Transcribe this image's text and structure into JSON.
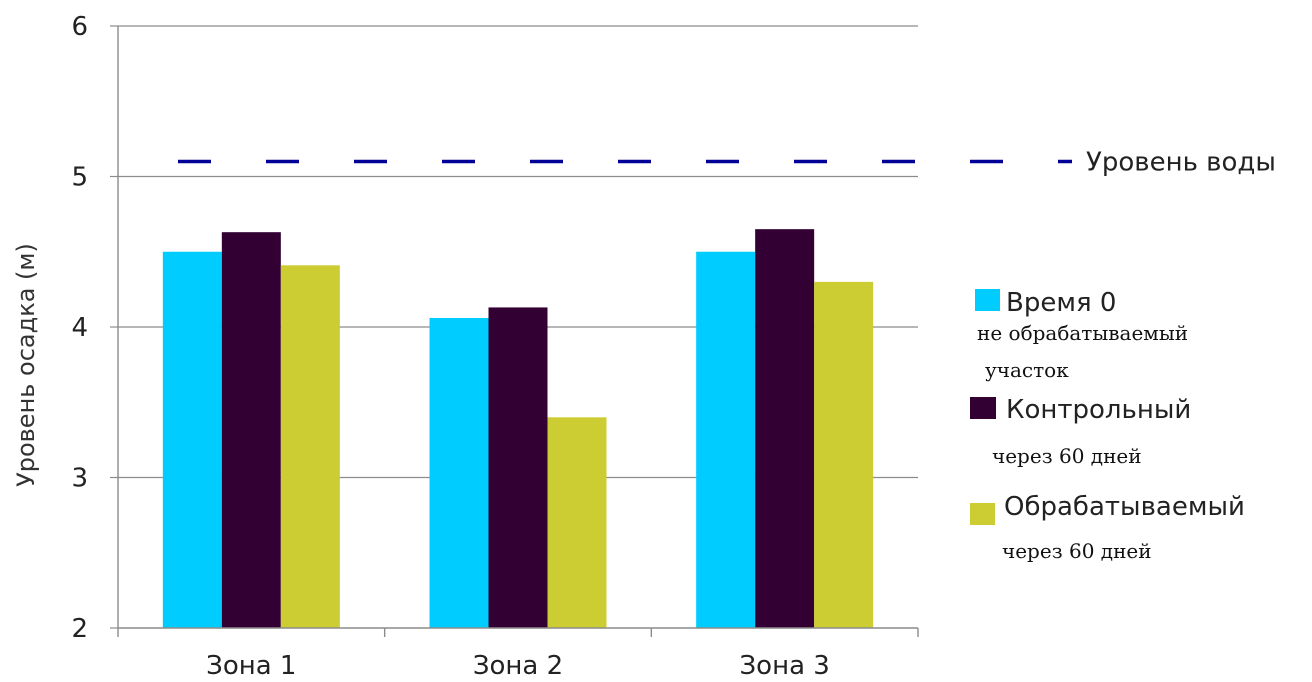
{
  "chart_data": {
    "type": "bar",
    "categories": [
      "Зона 1",
      "Зона 2",
      "Зона 3"
    ],
    "series": [
      {
        "name": "Время 0",
        "subtitle_lines": [
          "не обрабатываемый",
          "участок"
        ],
        "color": "#00ccff",
        "values": [
          4.5,
          4.06,
          4.5
        ]
      },
      {
        "name": "Контрольный",
        "subtitle_lines": [
          "через 60 дней"
        ],
        "color": "#330033",
        "values": [
          4.63,
          4.13,
          4.65
        ]
      },
      {
        "name": "Обрабатываемый",
        "subtitle_lines": [
          "через 60 дней"
        ],
        "color": "#cccc33",
        "values": [
          4.41,
          3.4,
          4.3
        ]
      }
    ],
    "reference_line": {
      "label": "Уровень воды",
      "value": 5.1,
      "color": "#000099",
      "style": "dashed"
    },
    "ylabel": "Уровень осадка (м)",
    "xlabel": "",
    "title": "",
    "ylim": [
      2,
      6
    ],
    "yticks": [
      2,
      3,
      4,
      5,
      6
    ],
    "grid": true,
    "legend": "right"
  }
}
